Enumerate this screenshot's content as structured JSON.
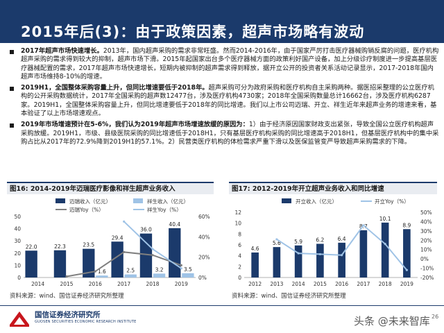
{
  "page": {
    "title": "2015年后(3)：由于政策因素，超声市场略有波动"
  },
  "bullets": [
    {
      "lead": "2017年超声市场快速增长。",
      "text": "2013年，国内超声采购的需求非常旺盛。然而2014-2016年，由于国家严厉打击医疗器械购销反腐的问题，医疗机构超声采购的需求得到较大的抑制，超声市场下滑。2015年起国家出台多个医疗器械方面的政策利好国产设备，加上分级诊疗制度进一步提高基层医疗器械配置的需求，2017年超声市场快速增长，短期内被抑制的超声需求得到释放，据开立公开的投资者关系活动记录显示，2017-2018年国内超声市场维持8-10%的增速。"
    },
    {
      "lead": "2019H1，全国整体采购容量上升，但同比增速要低于2018年。",
      "text": "超声采购可分为政府采购和医疗机构自主采购两种。据医招采整理的公立医疗机构的公开采购数据统计，2017年全国采购的超声数12477台，涉及医疗机构4730家；2018年全国采购数量总计16662台，涉及医疗机构6287家。2019H1，全国整体采购容量上升，但同比增速要低于2018年的同比增速。我们以上市公司迈瑞、开立、祥生近年来超声业务的增速来看，基本验证了以上市场增速观点。"
    },
    {
      "lead": "2019年市场增速预计在5-6%，我们认为2019年超声市场增速放缓的原因为：",
      "text": "1）由于经济原因国家财政支出紧张，导致全国公立医疗机构超声采购放缓。2019H1，市级、县级医院采购的同比增速低于2018H1，只有基层医疗机构采购的同比增速高于2018H1，但基层医疗机构中的集中采购占比从2017年的72.9%降到2019H1的57.1%。2）民营类医疗机构的体检需求严重下滑以及医保监管变严导致超声采购需求的下降。"
    }
  ],
  "charts": {
    "left_title": "图16:  2014-2019年迈瑞医疗影像和祥生超声业务收入",
    "right_title": "图17:  2012-2019年开立超声业务收入和同比增速",
    "left_source": "资料来源：wind、国信证券经济研究所整理",
    "right_source": "资料来源：wind、国信证券经济研究所整理"
  },
  "chart_data": [
    {
      "type": "bar",
      "categories": [
        "2014",
        "2015",
        "2016",
        "2017",
        "2018",
        "2019"
      ],
      "series": [
        {
          "name": "迈瑞收入（亿元）",
          "kind": "bar",
          "axis": "left",
          "color": "#1b3a6b",
          "values": [
            22.0,
            22.3,
            23.5,
            29.4,
            36.0,
            40.4
          ]
        },
        {
          "name": "祥生收入（亿元）",
          "kind": "bar",
          "axis": "left",
          "color": "#9fc3e6",
          "values": [
            null,
            null,
            1.6,
            2.5,
            3.2,
            3.5
          ]
        },
        {
          "name": "迈瑞Yoy（%）",
          "kind": "line",
          "axis": "right",
          "color": "#7f7f7f",
          "values": [
            null,
            1,
            6,
            25,
            22,
            12
          ]
        },
        {
          "name": "祥生Yoy（%）",
          "kind": "line",
          "axis": "right",
          "color": "#9fc3e6",
          "values": [
            null,
            null,
            null,
            55,
            28,
            9
          ]
        }
      ],
      "data_labels": {
        "迈瑞收入（亿元）": [
          "22.0",
          "22.3",
          "23.5",
          "29.4",
          "36.0",
          "40.4"
        ],
        "祥生收入（亿元）": [
          "",
          "",
          "1.6",
          "2.5",
          "3.2",
          "3.5"
        ]
      },
      "y_left": {
        "ticks": [
          0,
          10,
          20,
          30,
          40,
          50
        ],
        "range": [
          0,
          50
        ]
      },
      "y_right": {
        "ticks": [
          "0%",
          "20%",
          "40%",
          "60%"
        ],
        "range": [
          0,
          60
        ]
      },
      "legend_position": "top"
    },
    {
      "type": "bar",
      "categories": [
        "2012",
        "2013",
        "2014",
        "2015",
        "2016",
        "2017",
        "2018",
        "2019"
      ],
      "series": [
        {
          "name": "开立收入（亿元）",
          "kind": "bar",
          "axis": "left",
          "color": "#1b3a6b",
          "values": [
            4.6,
            5.6,
            5.9,
            6.2,
            6.4,
            8.7,
            10.1,
            8.9
          ]
        },
        {
          "name": "开立Yoy（%）",
          "kind": "line",
          "axis": "right",
          "color": "#9fc3e6",
          "values": [
            null,
            21,
            6,
            5,
            4,
            36,
            16,
            -12
          ]
        }
      ],
      "data_labels": {
        "开立收入（亿元）": [
          "4.6",
          "5.6",
          "5.9",
          "6.2",
          "6.4",
          "8.7",
          "10.1",
          "8.9"
        ]
      },
      "y_left": {
        "ticks": [
          0,
          2,
          4,
          6,
          8,
          10,
          12
        ],
        "range": [
          0,
          12
        ]
      },
      "y_right": {
        "ticks": [
          "-20%",
          "-10%",
          "0%",
          "10%",
          "20%",
          "30%",
          "40%",
          "50%"
        ],
        "range": [
          -20,
          50
        ]
      },
      "legend_position": "top"
    }
  ],
  "footer": {
    "org_cn": "国信证券经济研究所",
    "org_en": "GUOSEN SECURITIES ECONOMIC RESEARCH INSTITUTE",
    "watermark": "头条 @未来智库",
    "page_number": "26"
  }
}
